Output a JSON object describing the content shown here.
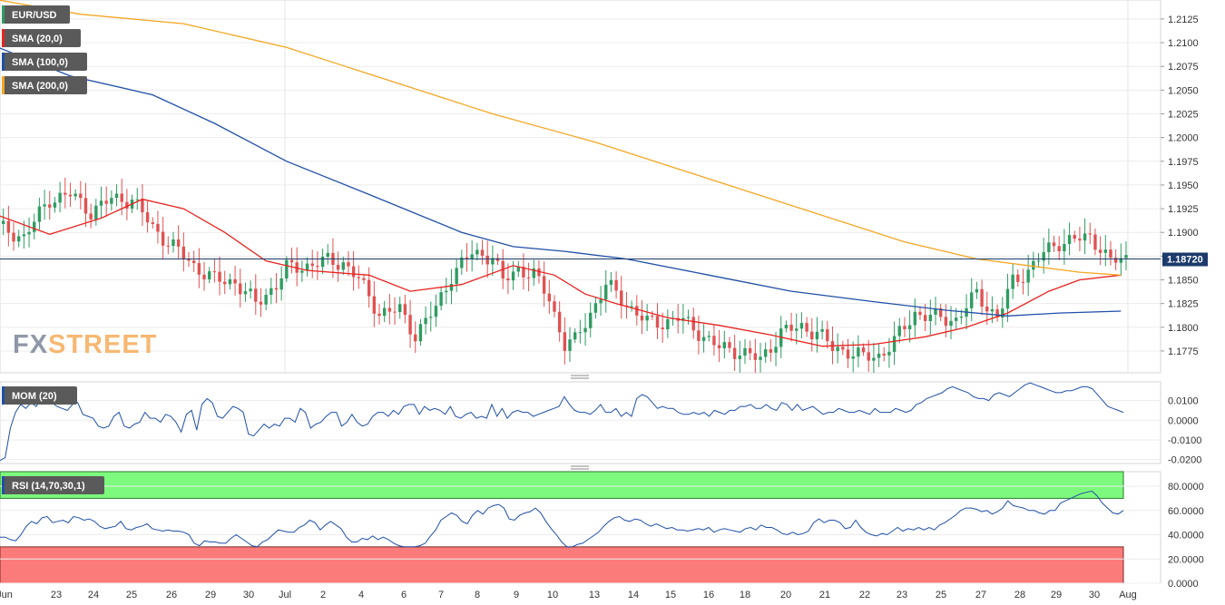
{
  "chart_data": [
    {
      "type": "candlestick",
      "symbol": "EUR/USD",
      "last_price_label": "1.18720",
      "last_price": 1.1872,
      "ylim": [
        1.1752,
        1.2145
      ],
      "y_ticks": [
        "1.2125",
        "1.2100",
        "1.2075",
        "1.2050",
        "1.2025",
        "1.2000",
        "1.1975",
        "1.1950",
        "1.1925",
        "1.1900",
        "1.1875",
        "1.1850",
        "1.1825",
        "1.1800",
        "1.1775"
      ],
      "x_tick_labels": [
        "Jun",
        "23",
        "24",
        "25",
        "26",
        "29",
        "30",
        "Jul",
        "2",
        "4",
        "6",
        "7",
        "8",
        "9",
        "10",
        "13",
        "14",
        "15",
        "16",
        "18",
        "20",
        "21",
        "22",
        "23",
        "25",
        "27",
        "28",
        "29",
        "30",
        "Aug"
      ],
      "candle_anchors": [
        [
          0,
          1.1905
        ],
        [
          5,
          1.1895
        ],
        [
          10,
          1.1935
        ],
        [
          14,
          1.194
        ],
        [
          18,
          1.1922
        ],
        [
          22,
          1.1935
        ],
        [
          26,
          1.1935
        ],
        [
          30,
          1.1905
        ],
        [
          34,
          1.1885
        ],
        [
          38,
          1.1865
        ],
        [
          42,
          1.185
        ],
        [
          46,
          1.1848
        ],
        [
          50,
          1.1825
        ],
        [
          54,
          1.1845
        ],
        [
          56,
          1.1862
        ],
        [
          60,
          1.1865
        ],
        [
          64,
          1.187
        ],
        [
          67,
          1.1868
        ],
        [
          70,
          1.185
        ],
        [
          74,
          1.1815
        ],
        [
          78,
          1.1818
        ],
        [
          81,
          1.1792
        ],
        [
          85,
          1.182
        ],
        [
          88,
          1.1855
        ],
        [
          92,
          1.1878
        ],
        [
          96,
          1.1875
        ],
        [
          98,
          1.1848
        ],
        [
          101,
          1.1862
        ],
        [
          104,
          1.1855
        ],
        [
          107,
          1.183
        ],
        [
          110,
          1.1782
        ],
        [
          112,
          1.1785
        ],
        [
          115,
          1.1815
        ],
        [
          118,
          1.1845
        ],
        [
          122,
          1.1825
        ],
        [
          126,
          1.1805
        ],
        [
          129,
          1.1805
        ],
        [
          132,
          1.181
        ],
        [
          136,
          1.1795
        ],
        [
          140,
          1.1778
        ],
        [
          144,
          1.1775
        ],
        [
          148,
          1.1765
        ],
        [
          152,
          1.1795
        ],
        [
          156,
          1.18
        ],
        [
          159,
          1.1795
        ],
        [
          162,
          1.1778
        ],
        [
          165,
          1.1775
        ],
        [
          168,
          1.1768
        ],
        [
          171,
          1.177
        ],
        [
          174,
          1.1785
        ],
        [
          178,
          1.1815
        ],
        [
          182,
          1.181
        ],
        [
          186,
          1.1808
        ],
        [
          190,
          1.1835
        ],
        [
          194,
          1.181
        ],
        [
          197,
          1.1848
        ],
        [
          200,
          1.186
        ],
        [
          203,
          1.1878
        ],
        [
          206,
          1.189
        ],
        [
          209,
          1.1892
        ],
        [
          212,
          1.1895
        ],
        [
          214,
          1.1885
        ],
        [
          216,
          1.1868
        ],
        [
          218,
          1.1872
        ]
      ],
      "series": [
        {
          "name": "SMA (20,0)",
          "color": "#e8231f",
          "points": [
            [
              0,
              1.1918
            ],
            [
              10,
              1.1898
            ],
            [
              20,
              1.1915
            ],
            [
              28,
              1.1935
            ],
            [
              36,
              1.1925
            ],
            [
              44,
              1.19
            ],
            [
              52,
              1.187
            ],
            [
              60,
              1.186
            ],
            [
              72,
              1.1855
            ],
            [
              80,
              1.1838
            ],
            [
              90,
              1.1845
            ],
            [
              100,
              1.1865
            ],
            [
              108,
              1.1855
            ],
            [
              114,
              1.1835
            ],
            [
              120,
              1.1825
            ],
            [
              130,
              1.181
            ],
            [
              140,
              1.1802
            ],
            [
              150,
              1.1792
            ],
            [
              160,
              1.178
            ],
            [
              170,
              1.1782
            ],
            [
              180,
              1.179
            ],
            [
              188,
              1.18
            ],
            [
              196,
              1.1815
            ],
            [
              204,
              1.1838
            ],
            [
              210,
              1.185
            ],
            [
              218,
              1.1855
            ]
          ]
        },
        {
          "name": "SMA (100,0)",
          "color": "#1f4fa8",
          "points": [
            [
              0,
              1.2095
            ],
            [
              14,
              1.2065
            ],
            [
              30,
              1.2045
            ],
            [
              42,
              1.2015
            ],
            [
              56,
              1.1975
            ],
            [
              72,
              1.194
            ],
            [
              90,
              1.19
            ],
            [
              100,
              1.1885
            ],
            [
              110,
              1.188
            ],
            [
              122,
              1.1872
            ],
            [
              138,
              1.1855
            ],
            [
              154,
              1.1838
            ],
            [
              170,
              1.1827
            ],
            [
              184,
              1.1818
            ],
            [
              196,
              1.1812
            ],
            [
              206,
              1.1815
            ],
            [
              218,
              1.1817
            ]
          ]
        },
        {
          "name": "SMA (200,0)",
          "color": "#f5a623",
          "points": [
            [
              0,
              1.2145
            ],
            [
              16,
              1.213
            ],
            [
              36,
              1.212
            ],
            [
              56,
              1.2095
            ],
            [
              76,
              1.206
            ],
            [
              96,
              1.2025
            ],
            [
              116,
              1.1995
            ],
            [
              136,
              1.196
            ],
            [
              156,
              1.1925
            ],
            [
              176,
              1.189
            ],
            [
              190,
              1.1872
            ],
            [
              200,
              1.1865
            ],
            [
              210,
              1.1858
            ],
            [
              218,
              1.1855
            ]
          ]
        }
      ]
    },
    {
      "type": "line",
      "name": "MOM (20)",
      "color": "#1f4fa8",
      "ylim": [
        -0.022,
        0.0195
      ],
      "y_ticks": [
        "0.0100",
        "0.0000",
        "-0.0100",
        "-0.0200"
      ],
      "values": [
        -0.0205,
        -0.019,
        -0.004,
        0.004,
        0.008,
        0.006,
        0.009,
        0.007,
        0.011,
        0.012,
        0.009,
        0.007,
        0.006,
        0.005,
        0.008,
        0.009,
        0.003,
        0.002,
        0.001,
        -0.003,
        -0.004,
        -0.003,
        0.002,
        0.004,
        -0.003,
        -0.004,
        -0.002,
        -0.001,
        0.004,
        0.001,
        0.001,
        -0.001,
        0.003,
        0.002,
        -0.001,
        -0.006,
        0.003,
        0.005,
        -0.005,
        0.008,
        0.011,
        0.009,
        0.002,
        0.001,
        0.004,
        0.007,
        0.006,
        0.004,
        -0.007,
        -0.008,
        -0.005,
        -0.002,
        -0.004,
        -0.002,
        -0.003,
        0.001,
        0.001,
        -0.001,
        0.006,
        0.004,
        -0.004,
        -0.002,
        -0.001,
        0.002,
        0.004,
        0.004,
        -0.003,
        -0.001,
        0.003,
        -0.001,
        -0.003,
        -0.002,
        0.002,
        0.004,
        0.004,
        0.002,
        0.005,
        0.003,
        0.007,
        0.008,
        0.008,
        0.003,
        0.007,
        0.005,
        0.006,
        0.005,
        0.003,
        0.007,
        0.002,
        0.001,
        0.003,
        0.004,
        0.001,
        0.002,
        0.001,
        0.008,
        0.002,
        0.006,
        0.001,
        0.004,
        0.005,
        0.004,
        0.004,
        0.002,
        0.003,
        0.004,
        0.005,
        0.006,
        0.007,
        0.012,
        0.008,
        0.005,
        0.004,
        0.004,
        0.003,
        0.005,
        0.008,
        0.004,
        0.004,
        0.006,
        0.002,
        0.004,
        0.002,
        0.011,
        0.013,
        0.012,
        0.009,
        0.006,
        0.007,
        0.006,
        0.006,
        0.004,
        0.003,
        0.003,
        0.004,
        0.003,
        0.004,
        0.002,
        0.005,
        0.004,
        0.003,
        0.005,
        0.005,
        0.007,
        0.007,
        0.008,
        0.006,
        0.006,
        0.008,
        0.006,
        0.005,
        0.009,
        0.008,
        0.005,
        0.008,
        0.005,
        0.006,
        0.007,
        0.005,
        0.003,
        0.004,
        0.004,
        0.006,
        0.005,
        0.004,
        0.004,
        0.005,
        0.004,
        0.003,
        0.006,
        0.004,
        0.004,
        0.004,
        0.006,
        0.005,
        0.004,
        0.005,
        0.008,
        0.009,
        0.011,
        0.012,
        0.013,
        0.014,
        0.016,
        0.017,
        0.016,
        0.015,
        0.014,
        0.012,
        0.011,
        0.011,
        0.01,
        0.013,
        0.014,
        0.013,
        0.012,
        0.014,
        0.016,
        0.018,
        0.019,
        0.018,
        0.017,
        0.016,
        0.015,
        0.014,
        0.014,
        0.015,
        0.015,
        0.016,
        0.017,
        0.017,
        0.016,
        0.013,
        0.01,
        0.007,
        0.006,
        0.005,
        0.004
      ]
    },
    {
      "type": "line",
      "name": "RSI (14,70,30,1)",
      "color": "#1f4fa8",
      "ylim": [
        0,
        92
      ],
      "overbought": 70,
      "oversold": 30,
      "overbought_color": "#7dfa7d",
      "oversold_color": "#fb7b7b",
      "y_ticks": [
        "80.0000",
        "60.0000",
        "40.0000",
        "20.0000",
        "0.0000"
      ],
      "values": [
        38,
        38,
        36,
        35,
        40,
        47,
        51,
        49,
        54,
        55,
        50,
        51,
        52,
        50,
        55,
        54,
        52,
        53,
        51,
        47,
        45,
        46,
        47,
        51,
        45,
        44,
        46,
        47,
        49,
        45,
        44,
        43,
        44,
        43,
        43,
        42,
        40,
        33,
        31,
        35,
        34,
        34,
        33,
        33,
        37,
        40,
        37,
        34,
        31,
        30,
        34,
        36,
        40,
        44,
        43,
        42,
        42,
        46,
        48,
        52,
        50,
        44,
        48,
        51,
        48,
        45,
        38,
        34,
        34,
        37,
        36,
        39,
        36,
        38,
        36,
        33,
        31,
        30,
        30,
        30,
        31,
        33,
        39,
        44,
        52,
        55,
        58,
        56,
        51,
        49,
        56,
        60,
        57,
        62,
        64,
        65,
        62,
        53,
        52,
        56,
        58,
        59,
        62,
        58,
        51,
        45,
        40,
        34,
        30,
        30,
        32,
        33,
        36,
        39,
        42,
        47,
        51,
        54,
        55,
        52,
        51,
        53,
        52,
        49,
        47,
        49,
        47,
        45,
        46,
        44,
        44,
        43,
        44,
        45,
        44,
        46,
        42,
        44,
        45,
        44,
        43,
        42,
        45,
        46,
        44,
        48,
        46,
        46,
        44,
        41,
        40,
        42,
        40,
        41,
        43,
        50,
        53,
        50,
        52,
        52,
        50,
        45,
        46,
        52,
        46,
        42,
        40,
        39,
        41,
        40,
        43,
        46,
        43,
        45,
        44,
        46,
        44,
        46,
        44,
        48,
        50,
        53,
        56,
        60,
        62,
        62,
        61,
        59,
        60,
        57,
        59,
        62,
        68,
        64,
        63,
        62,
        60,
        60,
        58,
        57,
        60,
        60,
        66,
        68,
        70,
        72,
        74,
        75,
        76,
        72,
        66,
        62,
        58,
        57,
        60
      ]
    }
  ],
  "panels": {
    "sma20_label": "SMA (20,0)",
    "sma100_label": "SMA (100,0)",
    "sma200_label": "SMA (200,0)",
    "price_value_label": "1.18720",
    "mom_label": "MOM (20)",
    "rsi_label": "RSI (14,70,30,1)"
  },
  "watermark": {
    "part1": "FX",
    "part2": "STREET"
  },
  "colors": {
    "up": "#2f9c62",
    "down": "#e05252",
    "tag_bg": "#5a5a5a",
    "price_tag_bg": "#1c3a6a"
  }
}
